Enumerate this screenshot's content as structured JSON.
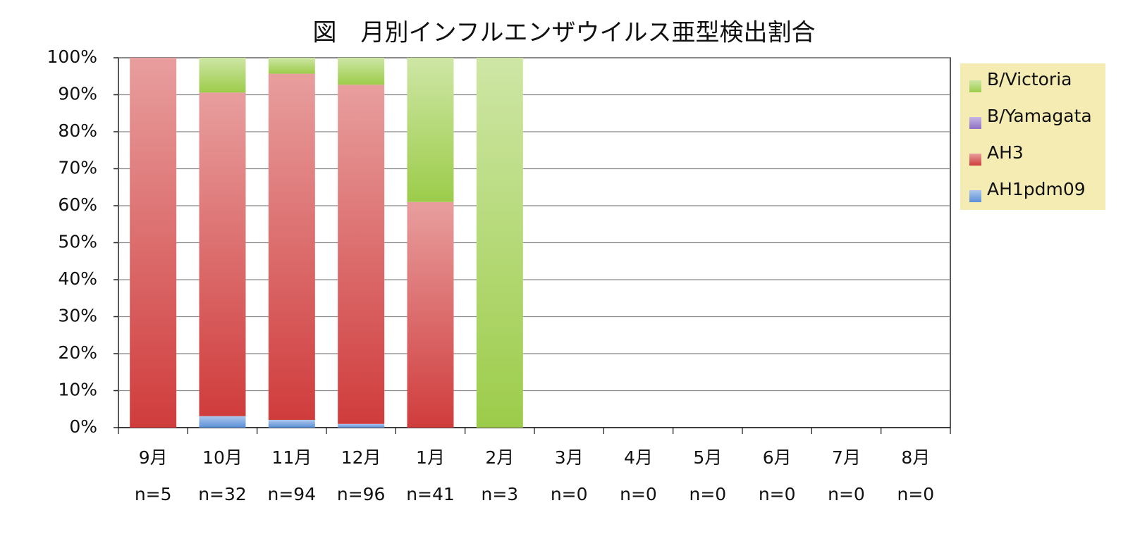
{
  "chart_data": {
    "type": "stacked_bar",
    "title": "図　月別インフルエンザウイルス亜型検出割合",
    "categories": [
      "9月",
      "10月",
      "11月",
      "12月",
      "1月",
      "2月",
      "3月",
      "4月",
      "5月",
      "6月",
      "7月",
      "8月"
    ],
    "category_notes": [
      "n=5",
      "n=32",
      "n=94",
      "n=96",
      "n=41",
      "n=3",
      "n=0",
      "n=0",
      "n=0",
      "n=0",
      "n=0",
      "n=0"
    ],
    "series": [
      {
        "name": "AH1pdm09",
        "color": "#5b8fd8",
        "values": [
          0,
          3.1,
          2.1,
          1.0,
          0,
          0,
          0,
          0,
          0,
          0,
          0,
          0
        ]
      },
      {
        "name": "AH3",
        "color": "#d03c3c",
        "values": [
          100,
          87.5,
          93.6,
          91.7,
          61.0,
          0,
          0,
          0,
          0,
          0,
          0,
          0
        ]
      },
      {
        "name": "B/Yamagata",
        "color": "#8e6fc6",
        "values": [
          0,
          0,
          0,
          0,
          0,
          0,
          0,
          0,
          0,
          0,
          0,
          0
        ]
      },
      {
        "name": "B/Victoria",
        "color": "#9ccc4a",
        "values": [
          0,
          9.4,
          4.3,
          7.3,
          39.0,
          100,
          0,
          0,
          0,
          0,
          0,
          0
        ]
      }
    ],
    "ylim": [
      0,
      100
    ],
    "yticks": [
      {
        "value": 0,
        "label": "0%"
      },
      {
        "value": 10,
        "label": "10%"
      },
      {
        "value": 20,
        "label": "20%"
      },
      {
        "value": 30,
        "label": "30%"
      },
      {
        "value": 40,
        "label": "40%"
      },
      {
        "value": 50,
        "label": "50%"
      },
      {
        "value": 60,
        "label": "60%"
      },
      {
        "value": 70,
        "label": "70%"
      },
      {
        "value": 80,
        "label": "80%"
      },
      {
        "value": 90,
        "label": "90%"
      },
      {
        "value": 100,
        "label": "100%"
      }
    ],
    "grid": true,
    "legend": "right"
  }
}
